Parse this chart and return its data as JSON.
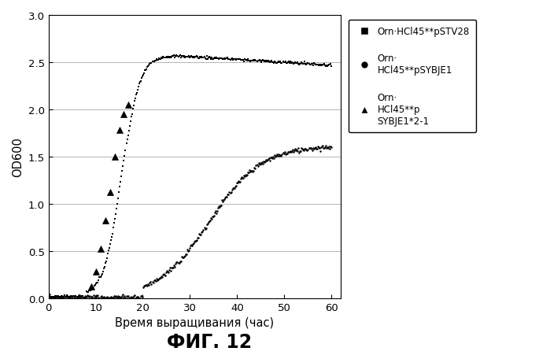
{
  "title": "ФИГ. 12",
  "xlabel": "Время выращивания (час)",
  "ylabel": "OD600",
  "xlim": [
    0,
    62
  ],
  "ylim": [
    0,
    3.0
  ],
  "xticks": [
    0,
    10,
    20,
    30,
    40,
    50,
    60
  ],
  "yticks": [
    0,
    0.5,
    1.0,
    1.5,
    2.0,
    2.5,
    3.0
  ],
  "legend_labels": [
    "Orn·HCl45**pSTV28",
    "Orn·\nHCl45**pSYBJE1",
    "Orn·\nHCl45**p\nSYBJE1*2-1"
  ],
  "legend_markers": [
    "s",
    "o",
    "^"
  ],
  "sq_x_flat_start": 0,
  "sq_x_rise_mid": 15.5,
  "sq_rise_k": 0.52,
  "sq_plateau": 2.585,
  "sq_flat_end_y": 2.38,
  "circ_rise_mid": 34,
  "circ_rise_k": 0.18,
  "circ_plateau": 1.62,
  "tri_x": [
    9,
    10,
    11,
    12,
    13,
    14,
    15,
    16,
    17
  ],
  "tri_y": [
    0.12,
    0.28,
    0.52,
    0.82,
    1.12,
    1.5,
    1.78,
    1.95,
    2.05
  ],
  "background_color": "#ffffff"
}
